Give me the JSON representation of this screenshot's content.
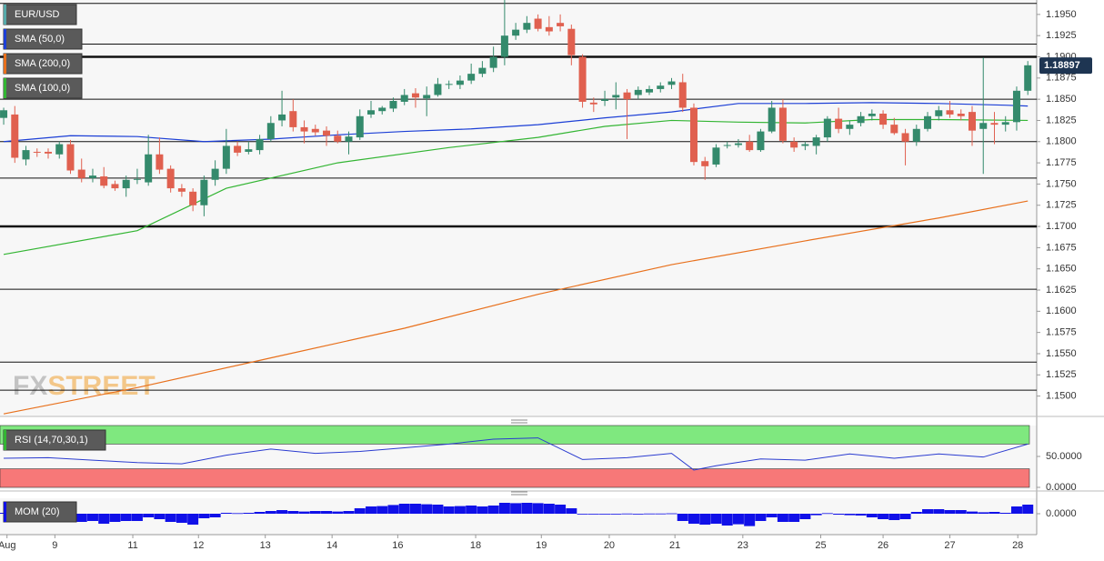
{
  "chart_data": [
    {
      "type": "candlestick",
      "symbol": "EUR/USD",
      "colors": {
        "up": "#348a6c",
        "down": "#e0604f"
      },
      "candles": [
        [
          1.1828,
          1.184,
          1.182,
          1.1837
        ],
        [
          1.1832,
          1.1842,
          1.1775,
          1.1781
        ],
        [
          1.1779,
          1.1795,
          1.1772,
          1.179
        ],
        [
          1.1788,
          1.1792,
          1.1782,
          1.1787
        ],
        [
          1.1788,
          1.1792,
          1.178,
          1.1786
        ],
        [
          1.1785,
          1.18,
          1.178,
          1.1797
        ],
        [
          1.1797,
          1.1802,
          1.1762,
          1.1766
        ],
        [
          1.1767,
          1.178,
          1.1752,
          1.1757
        ],
        [
          1.1757,
          1.1768,
          1.1752,
          1.176
        ],
        [
          1.1759,
          1.177,
          1.1745,
          1.1748
        ],
        [
          1.175,
          1.1754,
          1.1742,
          1.1745
        ],
        [
          1.1745,
          1.176,
          1.1735,
          1.1755
        ],
        [
          1.1755,
          1.1768,
          1.175,
          1.1756
        ],
        [
          1.1752,
          1.1808,
          1.1748,
          1.1785
        ],
        [
          1.1785,
          1.1805,
          1.1762,
          1.1767
        ],
        [
          1.1768,
          1.1772,
          1.174,
          1.1745
        ],
        [
          1.1745,
          1.175,
          1.1735,
          1.1741
        ],
        [
          1.1741,
          1.1745,
          1.1718,
          1.1725
        ],
        [
          1.1725,
          1.176,
          1.1712,
          1.1755
        ],
        [
          1.1755,
          1.1778,
          1.1748,
          1.1768
        ],
        [
          1.1768,
          1.1815,
          1.1762,
          1.1795
        ],
        [
          1.1795,
          1.18,
          1.1783,
          1.1787
        ],
        [
          1.1788,
          1.18,
          1.1785,
          1.1791
        ],
        [
          1.179,
          1.1808,
          1.1785,
          1.1803
        ],
        [
          1.1803,
          1.183,
          1.18,
          1.1822
        ],
        [
          1.1825,
          1.186,
          1.1818,
          1.1832
        ],
        [
          1.1836,
          1.185,
          1.1812,
          1.1817
        ],
        [
          1.1817,
          1.1825,
          1.1798,
          1.1812
        ],
        [
          1.1815,
          1.182,
          1.1807,
          1.1811
        ],
        [
          1.1813,
          1.1818,
          1.1795,
          1.1807
        ],
        [
          1.1807,
          1.1813,
          1.1798,
          1.18
        ],
        [
          1.18,
          1.1812,
          1.1785,
          1.1806
        ],
        [
          1.1805,
          1.1838,
          1.1802,
          1.183
        ],
        [
          1.1832,
          1.1848,
          1.1828,
          1.1837
        ],
        [
          1.1836,
          1.1842,
          1.1832,
          1.184
        ],
        [
          1.1839,
          1.1852,
          1.1835,
          1.1848
        ],
        [
          1.1847,
          1.1862,
          1.1843,
          1.1855
        ],
        [
          1.1857,
          1.1863,
          1.184,
          1.1852
        ],
        [
          1.1851,
          1.1865,
          1.183,
          1.1855
        ],
        [
          1.1855,
          1.1875,
          1.1853,
          1.1868
        ],
        [
          1.1867,
          1.1872,
          1.1862,
          1.1868
        ],
        [
          1.1867,
          1.1878,
          1.1862,
          1.1872
        ],
        [
          1.1872,
          1.1892,
          1.1868,
          1.188
        ],
        [
          1.188,
          1.1895,
          1.1876,
          1.1887
        ],
        [
          1.1887,
          1.1912,
          1.1882,
          1.19
        ],
        [
          1.19,
          1.1967,
          1.189,
          1.1925
        ],
        [
          1.1925,
          1.194,
          1.192,
          1.1932
        ],
        [
          1.1932,
          1.1948,
          1.1928,
          1.194
        ],
        [
          1.1945,
          1.195,
          1.193,
          1.1933
        ],
        [
          1.1935,
          1.1948,
          1.1925,
          1.193
        ],
        [
          1.194,
          1.195,
          1.193,
          1.1936
        ],
        [
          1.1933,
          1.1938,
          1.189,
          1.1902
        ],
        [
          1.19,
          1.1903,
          1.184,
          1.1847
        ],
        [
          1.1846,
          1.1852,
          1.1835,
          1.1844
        ],
        [
          1.1848,
          1.186,
          1.1842,
          1.185
        ],
        [
          1.1852,
          1.187,
          1.1838,
          1.1855
        ],
        [
          1.1858,
          1.1862,
          1.1803,
          1.185
        ],
        [
          1.1855,
          1.1865,
          1.185,
          1.1861
        ],
        [
          1.1858,
          1.1866,
          1.1855,
          1.1862
        ],
        [
          1.1862,
          1.187,
          1.1858,
          1.1866
        ],
        [
          1.1867,
          1.1875,
          1.1862,
          1.1871
        ],
        [
          1.187,
          1.188,
          1.1835,
          1.184
        ],
        [
          1.184,
          1.1845,
          1.1772,
          1.1776
        ],
        [
          1.1777,
          1.1782,
          1.1755,
          1.1771
        ],
        [
          1.1773,
          1.1797,
          1.177,
          1.1793
        ],
        [
          1.1795,
          1.18,
          1.1792,
          1.1796
        ],
        [
          1.1796,
          1.1803,
          1.1793,
          1.1798
        ],
        [
          1.18,
          1.1808,
          1.1788,
          1.179
        ],
        [
          1.179,
          1.1815,
          1.1788,
          1.1812
        ],
        [
          1.1812,
          1.1848,
          1.181,
          1.184
        ],
        [
          1.184,
          1.185,
          1.1798,
          1.1801
        ],
        [
          1.18,
          1.1805,
          1.1788,
          1.1793
        ],
        [
          1.1795,
          1.18,
          1.179,
          1.1797
        ],
        [
          1.1795,
          1.1808,
          1.1785,
          1.1805
        ],
        [
          1.1805,
          1.183,
          1.18,
          1.1827
        ],
        [
          1.1827,
          1.184,
          1.181,
          1.1815
        ],
        [
          1.1815,
          1.1825,
          1.1808,
          1.182
        ],
        [
          1.1822,
          1.1835,
          1.1818,
          1.183
        ],
        [
          1.183,
          1.1838,
          1.1825,
          1.1833
        ],
        [
          1.1833,
          1.1837,
          1.1815,
          1.182
        ],
        [
          1.182,
          1.1828,
          1.1808,
          1.181
        ],
        [
          1.181,
          1.1815,
          1.1772,
          1.18
        ],
        [
          1.18,
          1.182,
          1.1795,
          1.1815
        ],
        [
          1.1815,
          1.1835,
          1.1812,
          1.183
        ],
        [
          1.183,
          1.1842,
          1.1825,
          1.1837
        ],
        [
          1.1837,
          1.1848,
          1.1828,
          1.1832
        ],
        [
          1.1833,
          1.1838,
          1.1825,
          1.183
        ],
        [
          1.1835,
          1.1842,
          1.1795,
          1.1813
        ],
        [
          1.1815,
          1.1899,
          1.1762,
          1.1822
        ],
        [
          1.1822,
          1.1835,
          1.1797,
          1.182
        ],
        [
          1.182,
          1.183,
          1.1812,
          1.1823
        ],
        [
          1.1823,
          1.1865,
          1.1813,
          1.186
        ],
        [
          1.186,
          1.1895,
          1.1855,
          1.189
        ]
      ],
      "xlim": [
        -0.33,
        92.8
      ],
      "xticks": [
        {
          "value": 0.3,
          "label": "Aug"
        },
        {
          "value": 4.6,
          "label": "9"
        },
        {
          "value": 11.6,
          "label": "11"
        },
        {
          "value": 17.5,
          "label": "12"
        },
        {
          "value": 23.5,
          "label": "13"
        },
        {
          "value": 29.5,
          "label": "14"
        },
        {
          "value": 35.4,
          "label": "16"
        },
        {
          "value": 42.4,
          "label": "18"
        },
        {
          "value": 48.3,
          "label": "19"
        },
        {
          "value": 54.4,
          "label": "20"
        },
        {
          "value": 60.3,
          "label": "21"
        },
        {
          "value": 66.4,
          "label": "23"
        },
        {
          "value": 73.4,
          "label": "25"
        },
        {
          "value": 79.0,
          "label": "26"
        },
        {
          "value": 85.0,
          "label": "27"
        },
        {
          "value": 91.1,
          "label": "28"
        }
      ],
      "ylim": [
        1.1476,
        1.1967
      ],
      "yticks": [
        {
          "value": 1.195,
          "label": "1.1950"
        },
        {
          "value": 1.1925,
          "label": "1.1925"
        },
        {
          "value": 1.19,
          "label": "1.1900"
        },
        {
          "value": 1.1875,
          "label": "1.1875"
        },
        {
          "value": 1.185,
          "label": "1.1850"
        },
        {
          "value": 1.1825,
          "label": "1.1825"
        },
        {
          "value": 1.18,
          "label": "1.1800"
        },
        {
          "value": 1.1775,
          "label": "1.1775"
        },
        {
          "value": 1.175,
          "label": "1.1750"
        },
        {
          "value": 1.1725,
          "label": "1.1725"
        },
        {
          "value": 1.17,
          "label": "1.1700"
        },
        {
          "value": 1.1675,
          "label": "1.1675"
        },
        {
          "value": 1.165,
          "label": "1.1650"
        },
        {
          "value": 1.1625,
          "label": "1.1625"
        },
        {
          "value": 1.16,
          "label": "1.1600"
        },
        {
          "value": 1.1575,
          "label": "1.1575"
        },
        {
          "value": 1.155,
          "label": "1.1550"
        },
        {
          "value": 1.1525,
          "label": "1.1525"
        },
        {
          "value": 1.15,
          "label": "1.1500"
        }
      ],
      "last_price": 1.18897,
      "levels": [
        {
          "value": 1.1963,
          "style": "thin"
        },
        {
          "value": 1.1915,
          "style": "thin"
        },
        {
          "value": 1.19,
          "style": "thick"
        },
        {
          "value": 1.185,
          "style": "thin"
        },
        {
          "value": 1.18,
          "style": "thin"
        },
        {
          "value": 1.1757,
          "style": "thin"
        },
        {
          "value": 1.17,
          "style": "thick"
        },
        {
          "value": 1.1626,
          "style": "thin"
        },
        {
          "value": 1.154,
          "style": "thin"
        },
        {
          "value": 1.1507,
          "style": "thin"
        }
      ],
      "overlays": [
        {
          "name": "SMA (50,0)",
          "color": "#1c3fd6",
          "x": [
            0,
            6,
            12,
            18,
            24,
            30,
            36,
            42,
            48,
            54,
            60,
            66,
            72,
            78,
            84,
            90,
            92
          ],
          "values": [
            1.18,
            1.1807,
            1.1806,
            1.18,
            1.1803,
            1.1808,
            1.1812,
            1.1815,
            1.182,
            1.1828,
            1.1835,
            1.1845,
            1.1845,
            1.1846,
            1.1845,
            1.1843,
            1.1842
          ]
        },
        {
          "name": "SMA (200,0)",
          "color": "#e8701c",
          "x": [
            0,
            12,
            24,
            36,
            48,
            60,
            72,
            84,
            92
          ],
          "values": [
            1.1479,
            1.151,
            1.1545,
            1.158,
            1.162,
            1.1655,
            1.1683,
            1.171,
            1.173
          ]
        },
        {
          "name": "SMA (100,0)",
          "color": "#33b533",
          "x": [
            0,
            12,
            20,
            30,
            40,
            48,
            54,
            60,
            66,
            72,
            78,
            84,
            92
          ],
          "values": [
            1.1667,
            1.1695,
            1.1745,
            1.1775,
            1.1793,
            1.1805,
            1.1818,
            1.1825,
            1.1823,
            1.1822,
            1.1826,
            1.1826,
            1.1825
          ]
        }
      ],
      "watermark": [
        "FX",
        "STREET"
      ]
    },
    {
      "type": "line",
      "series": [
        {
          "name": "RSI (14,70,30,1)",
          "color": "#2a3bd0",
          "x": [
            0,
            4,
            8,
            12,
            16,
            20,
            24,
            28,
            32,
            36,
            40,
            44,
            48,
            52,
            56,
            60,
            62,
            64,
            68,
            72,
            76,
            80,
            84,
            88,
            92
          ],
          "values": [
            47,
            48,
            44,
            40,
            38,
            52,
            62,
            55,
            58,
            64,
            70,
            78,
            80,
            45,
            48,
            55,
            28,
            35,
            46,
            44,
            54,
            47,
            54,
            49,
            70
          ]
        }
      ],
      "xlim": [
        -0.33,
        92.8
      ],
      "ylim": [
        0,
        100
      ],
      "yticks": [
        {
          "value": 50,
          "label": "50.0000"
        },
        {
          "value": 0,
          "label": "0.0000"
        }
      ],
      "bands": [
        {
          "from": 70,
          "to": 100,
          "color": "#7fe87f"
        },
        {
          "from": 0,
          "to": 30,
          "color": "#f77878"
        }
      ]
    },
    {
      "type": "bar",
      "series": [
        {
          "name": "MOM (20)",
          "color": "#1010e8",
          "values": [
            0.0005,
            -0.0008,
            -0.0015,
            -0.0012,
            -0.0014,
            -0.001,
            -0.003,
            -0.0045,
            -0.004,
            -0.0055,
            -0.0045,
            -0.004,
            -0.004,
            -0.002,
            -0.003,
            -0.0045,
            -0.005,
            -0.006,
            -0.0025,
            -0.002,
            0.0005,
            0.0003,
            0.0005,
            0.001,
            0.0015,
            0.002,
            0.0015,
            0.0012,
            0.0015,
            0.0015,
            0.0012,
            0.0015,
            0.003,
            0.004,
            0.0042,
            0.0048,
            0.0055,
            0.0055,
            0.0052,
            0.005,
            0.004,
            0.0042,
            0.0045,
            0.004,
            0.0045,
            0.006,
            0.0058,
            0.006,
            0.0058,
            0.0055,
            0.005,
            0.003,
            -0.0002,
            -0.0003,
            -0.0003,
            -0.0001,
            0.0001,
            0.0,
            0.0001,
            0.0001,
            0.0002,
            -0.004,
            -0.0055,
            -0.006,
            -0.0055,
            -0.0065,
            -0.0058,
            -0.0068,
            -0.004,
            -0.002,
            -0.0045,
            -0.0045,
            -0.003,
            -0.0008,
            0.0003,
            -0.0005,
            -0.0008,
            -0.001,
            -0.002,
            -0.003,
            -0.0035,
            -0.003,
            0.001,
            0.0025,
            0.0025,
            0.002,
            0.002,
            0.0012,
            0.0008,
            0.001,
            0.0005,
            0.004,
            0.005
          ]
        }
      ],
      "xlim": [
        -0.33,
        92.8
      ],
      "ylim": [
        -0.0075,
        0.0075
      ],
      "yticks": [
        {
          "value": 0,
          "label": "0.0000"
        }
      ]
    }
  ]
}
